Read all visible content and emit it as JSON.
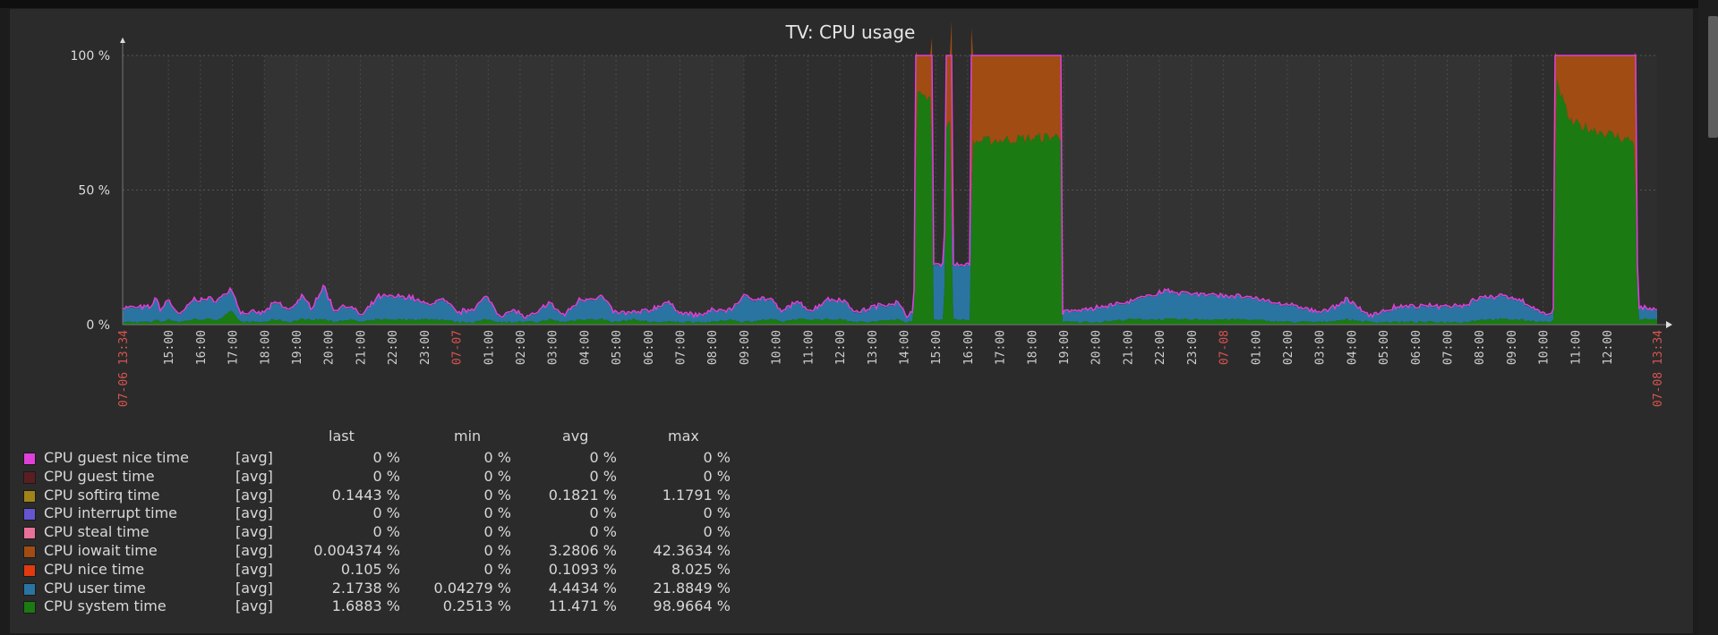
{
  "chart_data": {
    "type": "area",
    "stacked": true,
    "title": "TV: CPU usage",
    "ylim": [
      0,
      100
    ],
    "y_ticks": [
      "0 %",
      "50 %",
      "100 %"
    ],
    "x_unit": "hours since 07-06 13:34",
    "x_range_h": [
      0,
      48
    ],
    "x_start_label": "07-06 13:34",
    "x_end_label": "07-08 13:34",
    "first_hour_offset_h": 1.4333,
    "x_hour_labels": [
      "15:00",
      "16:00",
      "17:00",
      "18:00",
      "19:00",
      "20:00",
      "21:00",
      "22:00",
      "23:00",
      "07-07",
      "01:00",
      "02:00",
      "03:00",
      "04:00",
      "05:00",
      "06:00",
      "07:00",
      "08:00",
      "09:00",
      "10:00",
      "11:00",
      "12:00",
      "13:00",
      "14:00",
      "15:00",
      "16:00",
      "17:00",
      "18:00",
      "19:00",
      "20:00",
      "21:00",
      "22:00",
      "23:00",
      "07-08",
      "01:00",
      "02:00",
      "03:00",
      "04:00",
      "05:00",
      "06:00",
      "07:00",
      "08:00",
      "09:00",
      "10:00",
      "11:00",
      "12:00"
    ],
    "keyframes_columns": [
      "t_h",
      "system",
      "user",
      "iowait"
    ],
    "keyframes": [
      [
        0,
        1,
        5,
        0
      ],
      [
        0.9,
        1,
        5,
        0
      ],
      [
        1.0,
        2,
        8,
        0
      ],
      [
        1.2,
        1,
        4,
        0
      ],
      [
        1.4,
        2,
        7,
        0
      ],
      [
        1.8,
        1,
        2,
        0
      ],
      [
        2.2,
        2,
        7,
        0
      ],
      [
        3.0,
        2,
        7,
        0
      ],
      [
        3.4,
        5,
        8,
        0
      ],
      [
        3.7,
        1,
        3,
        0
      ],
      [
        4.4,
        1,
        3,
        0
      ],
      [
        4.8,
        2,
        6,
        0
      ],
      [
        5.2,
        1,
        4,
        0
      ],
      [
        5.6,
        2,
        8,
        0
      ],
      [
        5.9,
        2,
        4,
        0
      ],
      [
        6.3,
        2,
        12,
        0
      ],
      [
        6.6,
        1,
        4,
        0
      ],
      [
        7.0,
        2,
        5,
        0
      ],
      [
        7.5,
        1,
        2,
        0
      ],
      [
        8,
        2,
        8,
        0
      ],
      [
        9,
        2,
        8,
        0
      ],
      [
        9.5,
        2,
        5,
        0
      ],
      [
        10,
        2,
        7,
        0
      ],
      [
        10.5,
        1,
        3,
        0
      ],
      [
        11,
        1,
        5,
        0
      ],
      [
        11.4,
        2,
        8,
        0
      ],
      [
        11.8,
        1,
        2,
        0
      ],
      [
        12.3,
        1,
        4,
        0
      ],
      [
        12.6,
        1,
        1,
        0
      ],
      [
        13.0,
        1,
        3,
        0
      ],
      [
        13.3,
        2,
        6,
        0
      ],
      [
        13.8,
        1,
        2,
        0
      ],
      [
        14.3,
        2,
        7,
        0
      ],
      [
        15,
        2,
        8,
        0
      ],
      [
        15.4,
        1,
        3,
        0
      ],
      [
        16,
        2,
        2,
        0
      ],
      [
        16.5,
        1,
        4,
        0
      ],
      [
        17,
        1,
        7,
        0
      ],
      [
        17.5,
        1,
        3,
        0
      ],
      [
        18,
        1,
        2,
        0
      ],
      [
        18.5,
        1,
        4,
        0
      ],
      [
        19.0,
        2,
        3,
        0
      ],
      [
        19.4,
        1,
        9,
        0
      ],
      [
        20.3,
        2,
        7,
        0
      ],
      [
        20.6,
        1,
        3,
        0
      ],
      [
        21.0,
        2,
        6,
        0
      ],
      [
        21.6,
        2,
        3,
        0
      ],
      [
        22.0,
        2,
        7,
        0
      ],
      [
        22.5,
        2,
        7,
        0
      ],
      [
        23.0,
        1,
        3,
        0
      ],
      [
        23.4,
        1,
        5,
        0
      ],
      [
        24.2,
        2,
        6,
        0
      ],
      [
        24.55,
        1,
        2,
        0
      ],
      [
        24.75,
        2,
        4,
        0
      ],
      [
        24.85,
        85,
        0,
        15
      ],
      [
        25.3,
        85,
        0,
        15
      ],
      [
        25.35,
        2,
        20,
        0
      ],
      [
        25.7,
        2,
        20,
        0
      ],
      [
        25.75,
        75,
        0,
        25
      ],
      [
        25.9,
        75,
        0,
        25
      ],
      [
        25.95,
        2,
        20,
        0
      ],
      [
        26.5,
        2,
        20,
        0
      ],
      [
        26.6,
        68,
        0,
        32
      ],
      [
        29.35,
        70,
        0,
        30
      ],
      [
        29.4,
        1,
        3,
        0
      ],
      [
        30.5,
        1,
        5,
        0
      ],
      [
        31.5,
        2,
        6,
        0
      ],
      [
        32.5,
        2,
        10,
        0
      ],
      [
        35,
        2,
        8,
        0
      ],
      [
        36.5,
        1,
        6,
        0
      ],
      [
        37.5,
        1,
        3,
        0
      ],
      [
        38.3,
        2,
        7,
        0
      ],
      [
        39,
        1,
        2,
        0
      ],
      [
        39.8,
        1,
        5,
        0
      ],
      [
        42,
        1,
        6,
        0
      ],
      [
        42.5,
        2,
        8,
        0
      ],
      [
        43.5,
        2,
        8,
        0
      ],
      [
        44.6,
        1,
        2,
        0
      ],
      [
        44.75,
        1,
        3,
        0
      ],
      [
        44.85,
        90,
        0,
        10
      ],
      [
        45.3,
        75,
        0,
        25
      ],
      [
        47.3,
        68,
        0,
        32
      ],
      [
        47.4,
        2,
        4,
        0
      ],
      [
        48,
        2,
        3,
        0
      ]
    ],
    "series": [
      {
        "name": "CPU guest nice time",
        "func": "[avg]",
        "color": "#e040d8",
        "last": "0 %",
        "min": "0 %",
        "avg": "0 %",
        "max": "0 %"
      },
      {
        "name": "CPU guest time",
        "func": "[avg]",
        "color": "#5a1e22",
        "last": "0 %",
        "min": "0 %",
        "avg": "0 %",
        "max": "0 %"
      },
      {
        "name": "CPU softirq time",
        "func": "[avg]",
        "color": "#a08418",
        "last": "0.1443 %",
        "min": "0 %",
        "avg": "0.1821 %",
        "max": "1.1791 %"
      },
      {
        "name": "CPU interrupt time",
        "func": "[avg]",
        "color": "#6655d0",
        "last": "0 %",
        "min": "0 %",
        "avg": "0 %",
        "max": "0 %"
      },
      {
        "name": "CPU steal time",
        "func": "[avg]",
        "color": "#e8709a",
        "last": "0 %",
        "min": "0 %",
        "avg": "0 %",
        "max": "0 %"
      },
      {
        "name": "CPU iowait time",
        "func": "[avg]",
        "color": "#a04c12",
        "last": "0.004374 %",
        "min": "0 %",
        "avg": "3.2806 %",
        "max": "42.3634 %"
      },
      {
        "name": "CPU nice time",
        "func": "[avg]",
        "color": "#e03a10",
        "last": "0.105 %",
        "min": "0 %",
        "avg": "0.1093 %",
        "max": "8.025 %"
      },
      {
        "name": "CPU user time",
        "func": "[avg]",
        "color": "#2a74a2",
        "last": "2.1738 %",
        "min": "0.04279 %",
        "avg": "4.4434 %",
        "max": "21.8849 %"
      },
      {
        "name": "CPU system time",
        "func": "[avg]",
        "color": "#1b7a12",
        "last": "1.6883 %",
        "min": "0.2513 %",
        "avg": "11.471 %",
        "max": "98.9664 %"
      }
    ],
    "legend_headers": {
      "last": "last",
      "min": "min",
      "avg": "avg",
      "max": "max"
    }
  }
}
